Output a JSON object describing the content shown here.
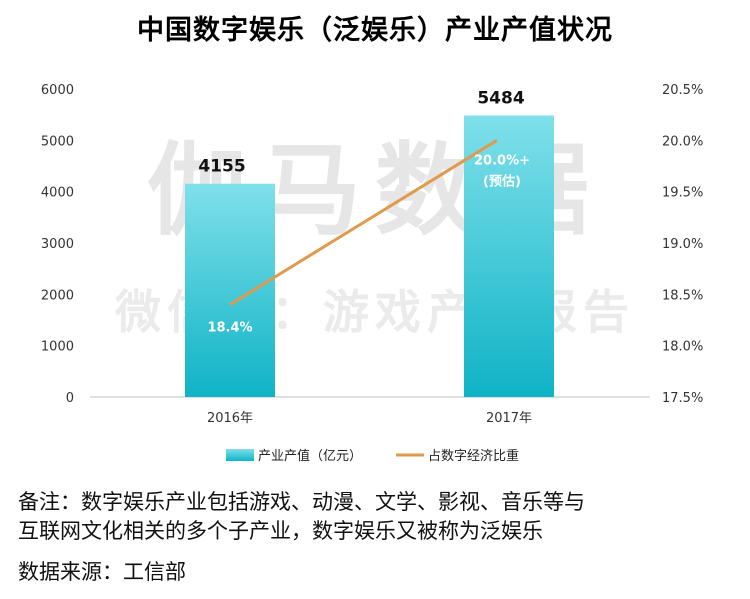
{
  "chart_data": {
    "type": "bar",
    "title": "中国数字娱乐（泛娱乐）产业产值状况",
    "categories": [
      "2016年",
      "2017年"
    ],
    "series": [
      {
        "name": "产业产值（亿元）",
        "kind": "bar",
        "axis": "left",
        "values": [
          4155,
          5484
        ],
        "color": "#1ab8cc"
      },
      {
        "name": "占数字经济比重",
        "kind": "line",
        "axis": "right",
        "values": [
          18.4,
          20.0
        ],
        "color": "#e09a4c"
      }
    ],
    "bar_labels": [
      "4155",
      "5484"
    ],
    "line_labels": [
      "18.4%",
      "20.0%+"
    ],
    "line_label_notes": [
      "",
      "(预估)"
    ],
    "ylim": [
      0,
      6000
    ],
    "yticks": [
      "0",
      "1000",
      "2000",
      "3000",
      "4000",
      "5000",
      "6000"
    ],
    "y2lim": [
      17.5,
      20.5
    ],
    "y2ticks": [
      "17.5%",
      "18.0%",
      "18.5%",
      "19.0%",
      "19.5%",
      "20.0%",
      "20.5%"
    ],
    "legend_position": "bottom",
    "grid": false,
    "watermark": [
      "伽马数据",
      "微信号：游戏产业报告"
    ]
  },
  "notes": [
    "备注：数字娱乐产业包括游戏、动漫、文学、影视、音乐等与",
    "互联网文化相关的多个子产业，数字娱乐又被称为泛娱乐",
    "数据来源：工信部"
  ]
}
